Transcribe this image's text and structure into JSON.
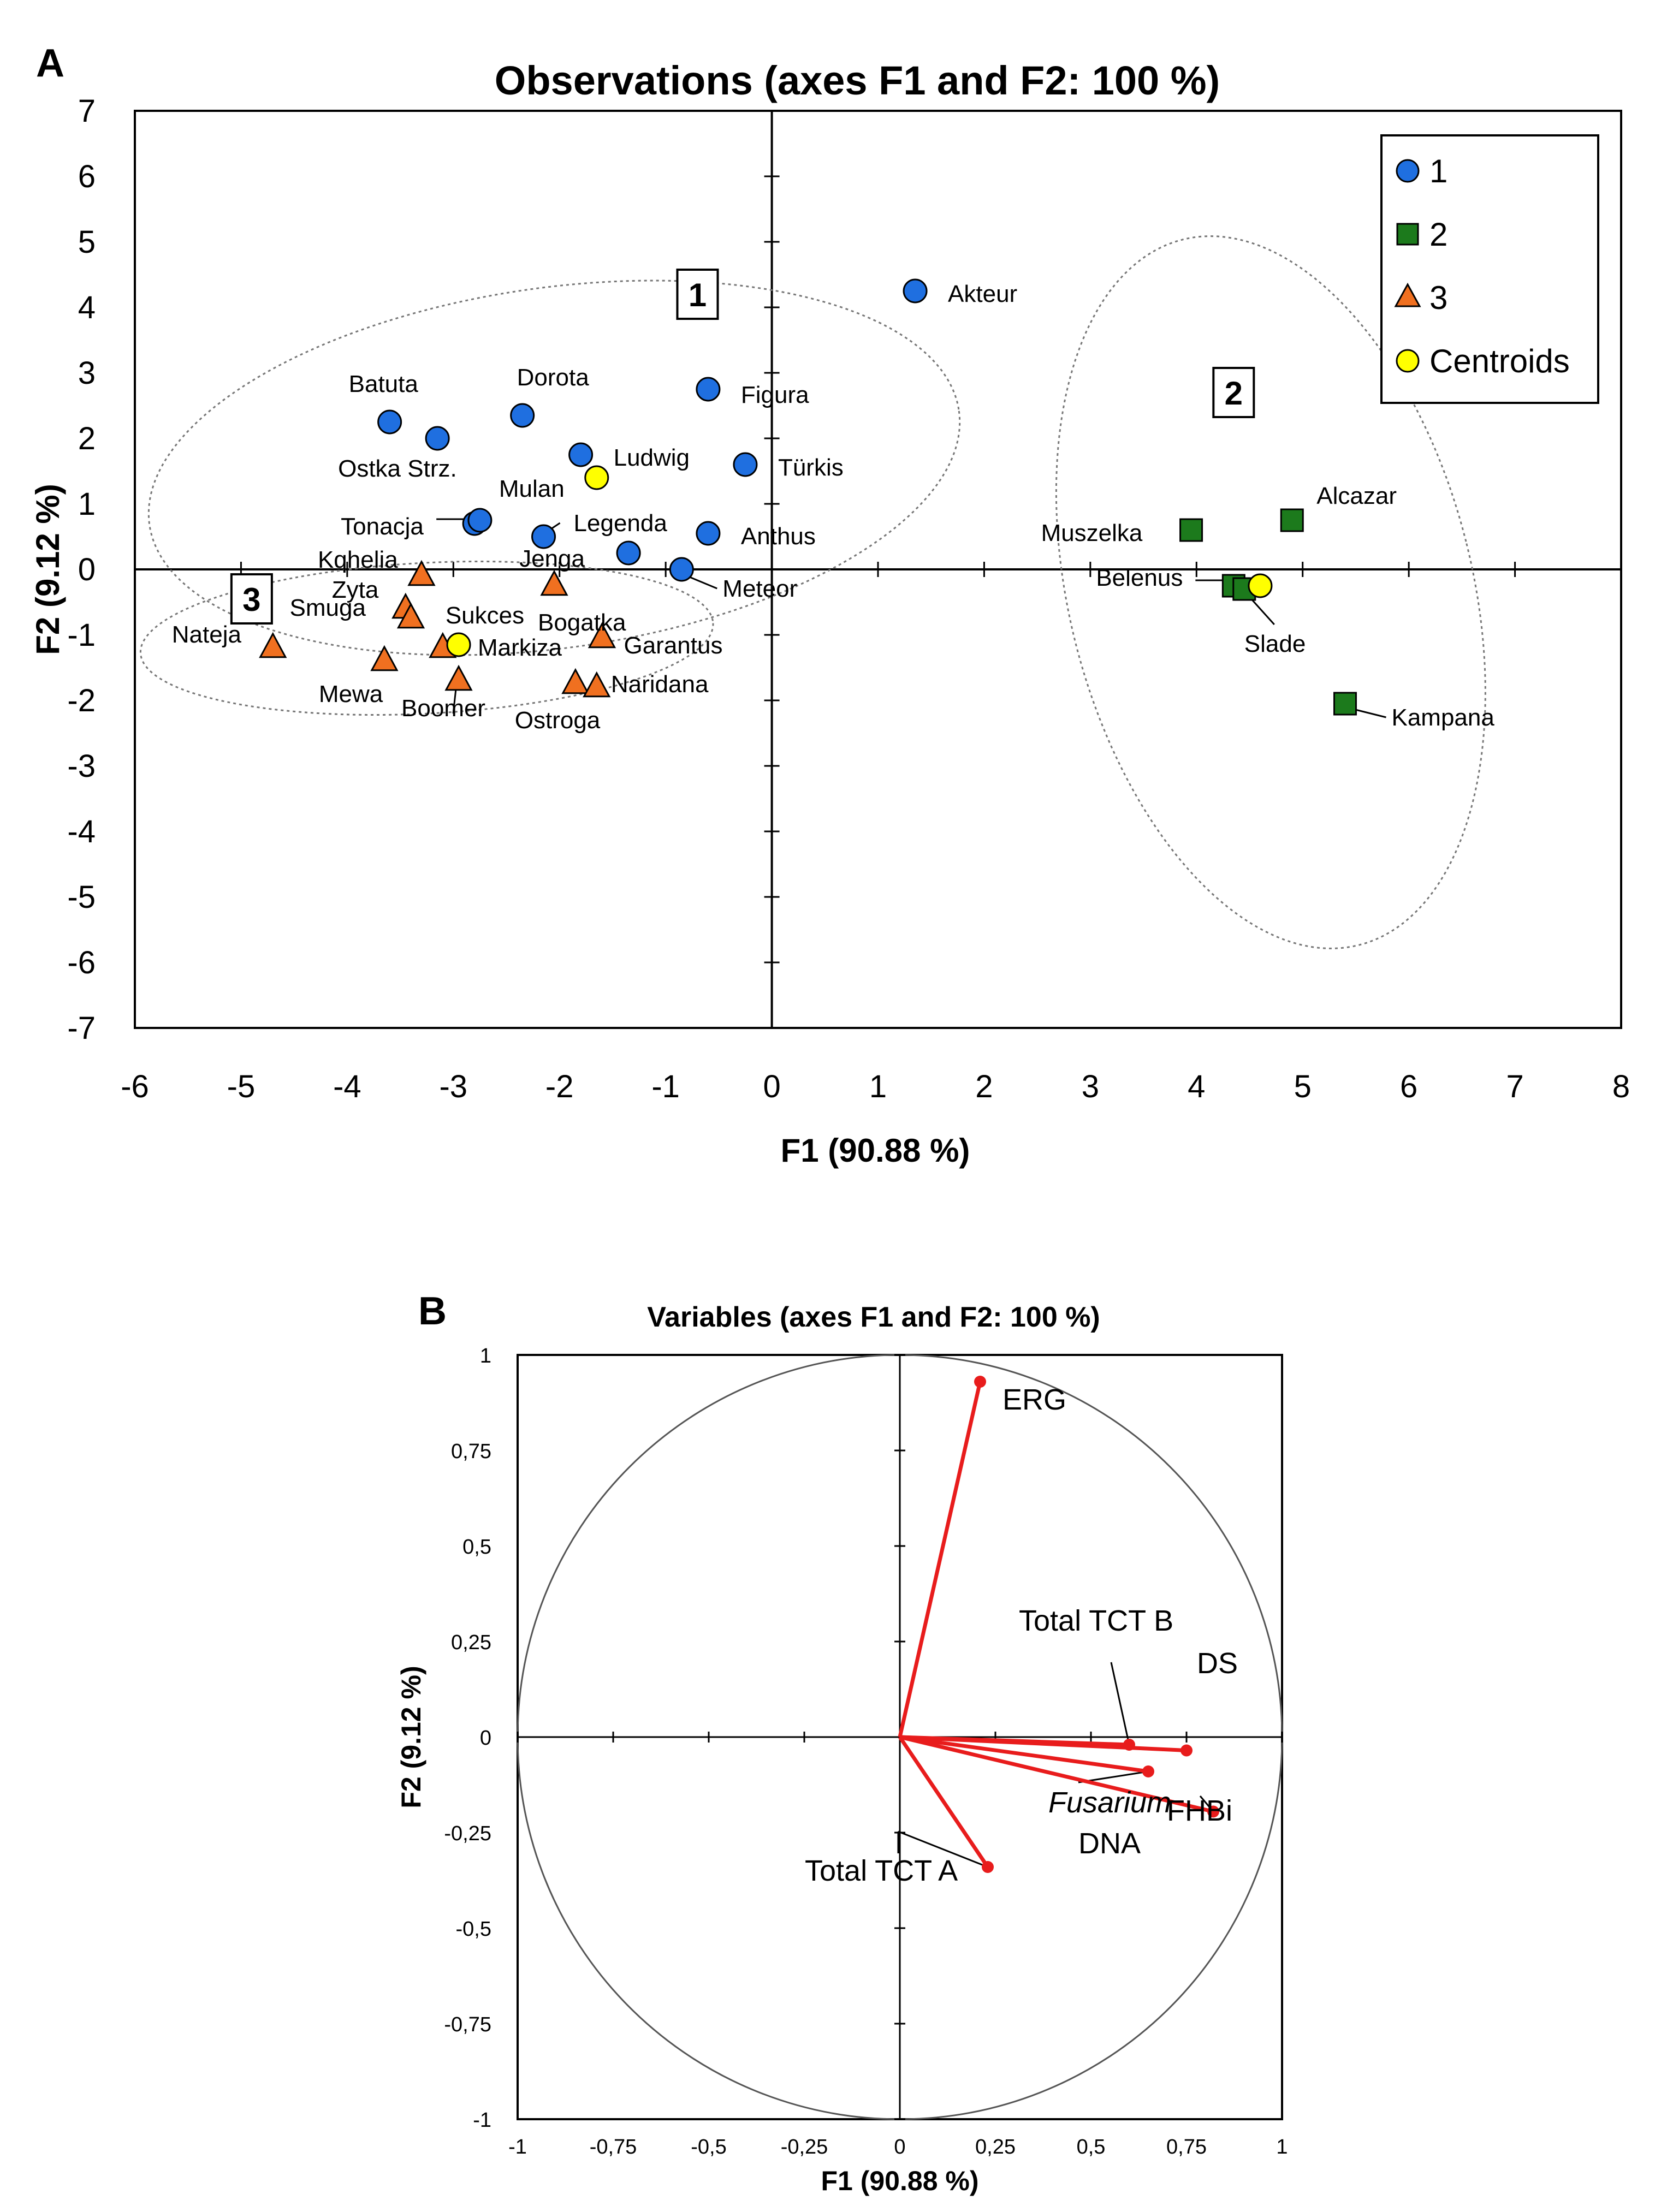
{
  "chart_data": [
    {
      "panel": "A",
      "type": "scatter",
      "title": "Observations (axes F1 and F2: 100 %)",
      "xlabel": "F1 (90.88 %)",
      "ylabel": "F2 (9.12 %)",
      "xlim": [
        -6,
        8
      ],
      "ylim": [
        -7,
        7
      ],
      "xticks": [
        -6,
        -5,
        -4,
        -3,
        -2,
        -1,
        0,
        1,
        2,
        3,
        4,
        5,
        6,
        7,
        8
      ],
      "yticks": [
        7,
        6,
        5,
        4,
        3,
        2,
        1,
        0,
        -1,
        -2,
        -3,
        -4,
        -5,
        -6,
        -7
      ],
      "legend": [
        "1",
        "2",
        "3",
        "Centroids"
      ],
      "cluster_labels": [
        "1",
        "2",
        "3"
      ],
      "series": [
        {
          "name": "1",
          "marker": "circle",
          "color": "#1f6fe0",
          "points": [
            {
              "label": "Akteur",
              "x": 1.35,
              "y": 4.25
            },
            {
              "label": "Batuta",
              "x": -3.6,
              "y": 2.25
            },
            {
              "label": "Ostka Strz.",
              "x": -3.15,
              "y": 2.0
            },
            {
              "label": "Dorota",
              "x": -2.35,
              "y": 2.35
            },
            {
              "label": "Figura",
              "x": -0.6,
              "y": 2.75
            },
            {
              "label": "Ludwig",
              "x": -1.8,
              "y": 1.75
            },
            {
              "label": "Türkis",
              "x": -0.25,
              "y": 1.6
            },
            {
              "label": "Tonacja",
              "x": -2.8,
              "y": 0.7
            },
            {
              "label": "Mulan",
              "x": -2.75,
              "y": 0.75
            },
            {
              "label": "Legenda",
              "x": -2.15,
              "y": 0.5
            },
            {
              "label": "Jenga",
              "x": -1.35,
              "y": 0.25
            },
            {
              "label": "Anthus",
              "x": -0.6,
              "y": 0.55
            },
            {
              "label": "Meteor",
              "x": -0.85,
              "y": 0.0
            }
          ]
        },
        {
          "name": "2",
          "marker": "square",
          "color": "#1c7a1c",
          "points": [
            {
              "label": "Muszelka",
              "x": 3.95,
              "y": 0.6
            },
            {
              "label": "Alcazar",
              "x": 4.9,
              "y": 0.75
            },
            {
              "label": "Belenus",
              "x": 4.35,
              "y": -0.25
            },
            {
              "label": "Slade",
              "x": 4.45,
              "y": -0.3
            },
            {
              "label": "Kampana",
              "x": 5.4,
              "y": -2.05
            }
          ]
        },
        {
          "name": "3",
          "marker": "triangle",
          "color": "#f07020",
          "points": [
            {
              "label": "Kqhelia",
              "x": -3.3,
              "y": -0.1
            },
            {
              "label": "Zyta",
              "x": -3.45,
              "y": -0.6
            },
            {
              "label": "Smuga",
              "x": -3.4,
              "y": -0.75
            },
            {
              "label": "Nateja",
              "x": -4.7,
              "y": -1.2
            },
            {
              "label": "Sukces",
              "x": -3.1,
              "y": -1.2
            },
            {
              "label": "Mewa",
              "x": -3.65,
              "y": -1.4
            },
            {
              "label": "Boomer",
              "x": -2.95,
              "y": -1.7
            },
            {
              "label": "Bogatka",
              "x": -2.05,
              "y": -0.25
            },
            {
              "label": "Garantus",
              "x": -1.6,
              "y": -1.05
            },
            {
              "label": "Naridana",
              "x": -1.85,
              "y": -1.75
            },
            {
              "label": "Ostroga",
              "x": -1.65,
              "y": -1.8
            }
          ]
        },
        {
          "name": "Centroids",
          "marker": "circle",
          "color": "#ffff00",
          "points": [
            {
              "label": "",
              "x": -1.65,
              "y": 1.4
            },
            {
              "label": "",
              "x": 4.6,
              "y": -0.25
            },
            {
              "label": "Markiza",
              "x": -2.95,
              "y": -1.15
            }
          ]
        }
      ]
    },
    {
      "panel": "B",
      "type": "biplot",
      "title": "Variables (axes F1 and F2: 100 %)",
      "xlabel": "F1 (90.88 %)",
      "ylabel": "F2 (9.12 %)",
      "xlim": [
        -1,
        1
      ],
      "ylim": [
        -1,
        1
      ],
      "xticks": [
        "-1",
        "-0,75",
        "-0,5",
        "-0,25",
        "0",
        "0,25",
        "0,5",
        "0,75",
        "1"
      ],
      "yticks": [
        "1",
        "0,75",
        "0,5",
        "0,25",
        "0",
        "-0,25",
        "-0,5",
        "-0,75",
        "-1"
      ],
      "vectors": [
        {
          "label": "ERG",
          "x": 0.21,
          "y": 0.93
        },
        {
          "label": "Total TCT B",
          "x": 0.6,
          "y": -0.02
        },
        {
          "label": "DS",
          "x": 0.75,
          "y": -0.035
        },
        {
          "label": "FHBi",
          "x": 0.82,
          "y": -0.195
        },
        {
          "label": "Fusarium DNA",
          "label_italic": "Fusarium",
          "label_rest": "DNA",
          "x": 0.65,
          "y": -0.09
        },
        {
          "label": "Total TCT A",
          "x": 0.23,
          "y": -0.34
        }
      ]
    }
  ]
}
